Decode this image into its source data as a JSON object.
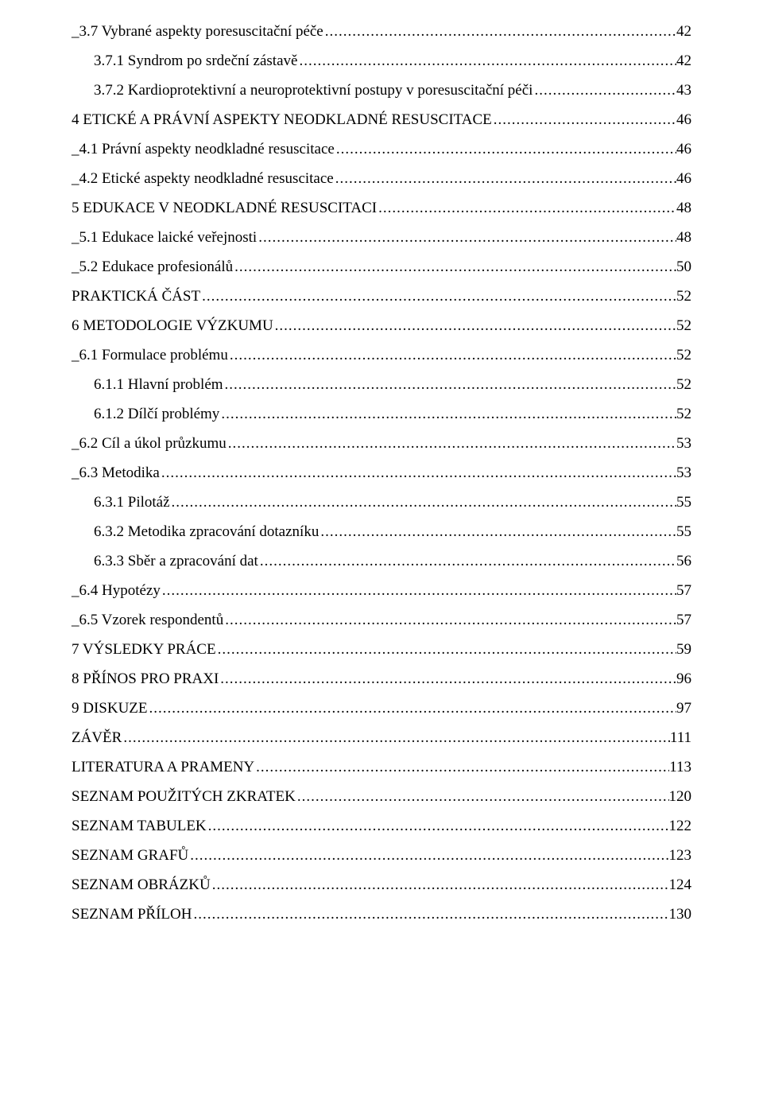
{
  "toc": [
    {
      "indent": 0,
      "label": "_3.7 Vybrané aspekty poresuscitační péče",
      "page": "42"
    },
    {
      "indent": 1,
      "label": "3.7.1 Syndrom po srdeční zástavě",
      "page": "42"
    },
    {
      "indent": 1,
      "label": "3.7.2 Kardioprotektivní a neuroprotektivní postupy v poresuscitační péči",
      "page": "43"
    },
    {
      "indent": 0,
      "label": "4 ETICKÉ A PRÁVNÍ ASPEKTY NEODKLADNÉ RESUSCITACE",
      "page": "46"
    },
    {
      "indent": 0,
      "label": "_4.1 Právní aspekty neodkladné resuscitace",
      "page": "46"
    },
    {
      "indent": 0,
      "label": "_4.2 Etické aspekty neodkladné resuscitace",
      "page": "46"
    },
    {
      "indent": 0,
      "label": "5 EDUKACE V NEODKLADNÉ RESUSCITACI",
      "page": "48"
    },
    {
      "indent": 0,
      "label": "_5.1 Edukace laické veřejnosti",
      "page": "48"
    },
    {
      "indent": 0,
      "label": "_5.2 Edukace profesionálů",
      "page": "50"
    },
    {
      "indent": 0,
      "label": "PRAKTICKÁ ČÁST",
      "page": "52"
    },
    {
      "indent": 0,
      "label": "6 METODOLOGIE VÝZKUMU",
      "page": "52"
    },
    {
      "indent": 0,
      "label": "_6.1 Formulace problému",
      "page": "52"
    },
    {
      "indent": 1,
      "label": "6.1.1 Hlavní problém",
      "page": "52"
    },
    {
      "indent": 1,
      "label": "6.1.2 Dílčí problémy",
      "page": "52"
    },
    {
      "indent": 0,
      "label": "_6.2 Cíl a úkol průzkumu",
      "page": "53"
    },
    {
      "indent": 0,
      "label": "_6.3 Metodika",
      "page": "53"
    },
    {
      "indent": 1,
      "label": "6.3.1 Pilotáž",
      "page": "55"
    },
    {
      "indent": 1,
      "label": "6.3.2 Metodika zpracování dotazníku",
      "page": "55"
    },
    {
      "indent": 1,
      "label": "6.3.3 Sběr a zpracování dat",
      "page": "56"
    },
    {
      "indent": 0,
      "label": "_6.4 Hypotézy",
      "page": "57"
    },
    {
      "indent": 0,
      "label": "_6.5 Vzorek respondentů",
      "page": "57"
    },
    {
      "indent": 0,
      "label": "7 VÝSLEDKY PRÁCE",
      "page": "59"
    },
    {
      "indent": 0,
      "label": "8 PŘÍNOS PRO PRAXI",
      "page": "96"
    },
    {
      "indent": 0,
      "label": "9 DISKUZE",
      "page": "97"
    },
    {
      "indent": 0,
      "label": "ZÁVĚR",
      "page": "111"
    },
    {
      "indent": 0,
      "label": "LITERATURA A PRAMENY",
      "page": "113"
    },
    {
      "indent": 0,
      "label": "SEZNAM POUŽITÝCH ZKRATEK",
      "page": "120"
    },
    {
      "indent": 0,
      "label": "SEZNAM TABULEK",
      "page": "122"
    },
    {
      "indent": 0,
      "label": "SEZNAM GRAFŮ",
      "page": "123"
    },
    {
      "indent": 0,
      "label": "SEZNAM OBRÁZKŮ",
      "page": "124"
    },
    {
      "indent": 0,
      "label": "SEZNAM PŘÍLOH",
      "page": "130"
    }
  ]
}
